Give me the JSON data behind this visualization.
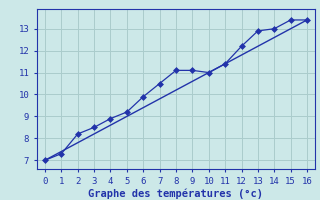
{
  "line1_x": [
    0,
    1,
    2,
    3,
    4,
    5,
    6,
    7,
    8,
    9,
    10,
    11,
    12,
    13,
    14,
    15,
    16
  ],
  "line1_y": [
    7.0,
    7.3,
    8.2,
    8.5,
    8.9,
    9.2,
    9.9,
    10.5,
    11.1,
    11.1,
    11.0,
    11.4,
    12.2,
    12.9,
    13.0,
    13.4,
    13.4
  ],
  "line2_x": [
    0,
    16
  ],
  "line2_y": [
    7.0,
    13.4
  ],
  "line_color": "#2233aa",
  "marker": "D",
  "marker_size": 3,
  "bg_color": "#cce8e8",
  "grid_color": "#aacccc",
  "xlabel": "Graphe des températures (°c)",
  "xlabel_color": "#2233aa",
  "xlim": [
    -0.5,
    16.5
  ],
  "ylim": [
    6.6,
    13.9
  ],
  "xticks": [
    0,
    1,
    2,
    3,
    4,
    5,
    6,
    7,
    8,
    9,
    10,
    11,
    12,
    13,
    14,
    15,
    16
  ],
  "yticks": [
    7,
    8,
    9,
    10,
    11,
    12,
    13
  ],
  "tick_color": "#2233aa",
  "spine_color": "#2233aa",
  "tick_fontsize": 6.5,
  "xlabel_fontsize": 7.5
}
